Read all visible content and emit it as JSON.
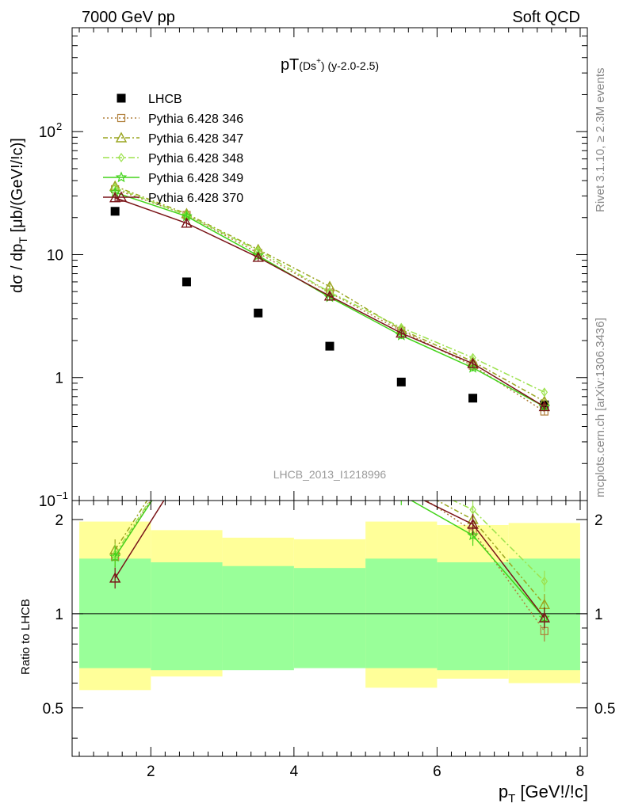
{
  "header": {
    "left": "7000 GeV pp",
    "right": "Soft QCD"
  },
  "side_text": {
    "top": "Rivet 3.1.10, ≥ 2.3M events",
    "bottom": "mcplots.cern.ch [arXiv:1306.3436]"
  },
  "title": {
    "main": "pT",
    "sub": "(Ds",
    "sup": "+",
    "close": ")",
    "tail": " (y-2.0-2.5)"
  },
  "watermark": "LHCB_2013_I1218996",
  "ylabel_top": {
    "a": "dσ / dp",
    "sub": "T",
    "b": " [μb/(GeV!/!c)]"
  },
  "ylabel_bottom": "Ratio to LHCB",
  "xlabel": {
    "a": "p",
    "sub": "T",
    "b": " [GeV!/!c]"
  },
  "top_ticks": [
    {
      "v": 100,
      "base": "10",
      "exp": "2"
    },
    {
      "v": 10,
      "base": "10",
      "exp": ""
    },
    {
      "v": 1,
      "base": "1",
      "exp": ""
    },
    {
      "v": 0.1,
      "base": "10",
      "exp": "−1"
    }
  ],
  "chart_data": {
    "type": "line",
    "x": [
      1.5,
      2.5,
      3.5,
      4.5,
      5.5,
      6.5,
      7.5
    ],
    "bin_edges": [
      1,
      2,
      3,
      4,
      5,
      6,
      7,
      8
    ],
    "xlim": [
      0.9,
      8.1
    ],
    "ylim_top": [
      0.1,
      700
    ],
    "ylim_bottom": [
      0.35,
      2.3
    ],
    "xticks": [
      2,
      4,
      6,
      8
    ],
    "ratio_ticks": [
      0.5,
      1,
      2
    ],
    "series": [
      {
        "name": "LHCB",
        "kind": "data",
        "color": "#000000",
        "values": [
          22.5,
          6.0,
          3.35,
          1.8,
          0.92,
          0.68,
          0.6
        ]
      },
      {
        "name": "Pythia 6.428 346",
        "kind": "mc",
        "color": "#b07f3a",
        "dash": "2,3",
        "marker": "square",
        "values": [
          34,
          21,
          10.3,
          4.9,
          2.4,
          1.25,
          0.53
        ],
        "ratio": [
          1.52,
          3.5,
          3.1,
          2.7,
          2.6,
          1.84,
          0.88
        ]
      },
      {
        "name": "Pythia 6.428 347",
        "kind": "mc",
        "color": "#9aa520",
        "dash": "6,3,2,3",
        "marker": "triangle",
        "values": [
          36,
          21.5,
          11,
          5.5,
          2.45,
          1.35,
          0.64
        ],
        "ratio": [
          1.6,
          3.6,
          3.3,
          3.05,
          2.65,
          2.0,
          1.07
        ]
      },
      {
        "name": "Pythia 6.428 348",
        "kind": "mc",
        "color": "#9de24f",
        "dash": "8,3,2,3",
        "marker": "diamond",
        "values": [
          35,
          21,
          10.8,
          4.95,
          2.55,
          1.45,
          0.76
        ],
        "ratio": [
          1.55,
          3.5,
          3.2,
          2.75,
          2.75,
          2.15,
          1.27
        ]
      },
      {
        "name": "Pythia 6.428 349",
        "kind": "mc",
        "color": "#43d41a",
        "dash": "",
        "marker": "star",
        "values": [
          32,
          20.5,
          9.8,
          4.5,
          2.2,
          1.2,
          0.58
        ],
        "ratio": [
          1.52,
          3.4,
          2.95,
          2.5,
          2.4,
          1.78,
          0.97
        ]
      },
      {
        "name": "Pythia 6.428 370",
        "kind": "mc",
        "color": "#7a1418",
        "dash": "",
        "marker": "triangle",
        "values": [
          29,
          18,
          9.5,
          4.6,
          2.3,
          1.3,
          0.58
        ],
        "ratio": [
          1.3,
          3.0,
          2.85,
          2.55,
          2.5,
          1.93,
          0.97
        ]
      }
    ],
    "bands": {
      "green": [
        [
          0.67,
          1.5
        ],
        [
          0.66,
          1.46
        ],
        [
          0.66,
          1.42
        ],
        [
          0.67,
          1.4
        ],
        [
          0.67,
          1.5
        ],
        [
          0.66,
          1.46
        ],
        [
          0.66,
          1.5
        ]
      ],
      "yellow": [
        [
          0.57,
          1.97
        ],
        [
          0.63,
          1.85
        ],
        [
          0.7,
          1.75
        ],
        [
          0.71,
          1.73
        ],
        [
          0.58,
          1.97
        ],
        [
          0.62,
          1.92
        ],
        [
          0.6,
          1.95
        ]
      ]
    },
    "grid": false,
    "legend": "top-left"
  }
}
